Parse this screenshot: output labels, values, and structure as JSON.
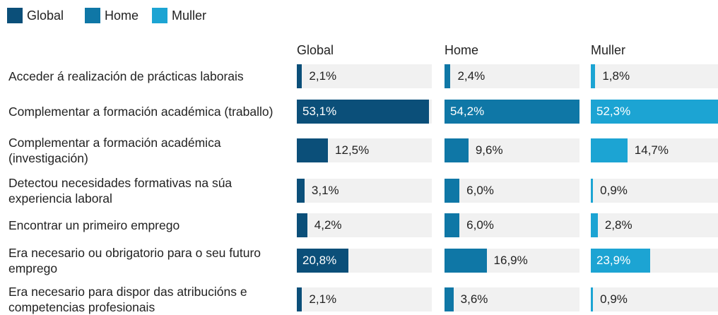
{
  "chart_data": {
    "type": "bar",
    "categories": [
      "Acceder á realización de prácticas laborais",
      "Complementar a formación académica (traballo)",
      "Complementar a formación académica (investigación)",
      "Detectou necesidades formativas na súa experiencia laboral",
      "Encontrar un primeiro emprego",
      "Era necesario ou obrigatorio para o seu futuro emprego",
      "Era necesario para dispor das atribucións e competencias profesionais"
    ],
    "xlim": [
      0,
      54.2
    ],
    "series": [
      {
        "name": "Global",
        "color": "#0b4f79",
        "values": [
          2.1,
          53.1,
          12.5,
          3.1,
          4.2,
          20.8,
          2.1
        ],
        "value_labels": [
          "2,1%",
          "53,1%",
          "12,5%",
          "3,1%",
          "4,2%",
          "20,8%",
          "2,1%"
        ]
      },
      {
        "name": "Home",
        "color": "#0f77a6",
        "values": [
          2.4,
          54.2,
          9.6,
          6.0,
          6.0,
          16.9,
          3.6
        ],
        "value_labels": [
          "2,4%",
          "54,2%",
          "9,6%",
          "6,0%",
          "6,0%",
          "16,9%",
          "3,6%"
        ]
      },
      {
        "name": "Muller",
        "color": "#1ca4d3",
        "values": [
          1.8,
          52.3,
          14.7,
          0.9,
          2.8,
          23.9,
          0.9
        ],
        "value_labels": [
          "1,8%",
          "52,3%",
          "14,7%",
          "0,9%",
          "2,8%",
          "23,9%",
          "0,9%"
        ]
      }
    ]
  }
}
